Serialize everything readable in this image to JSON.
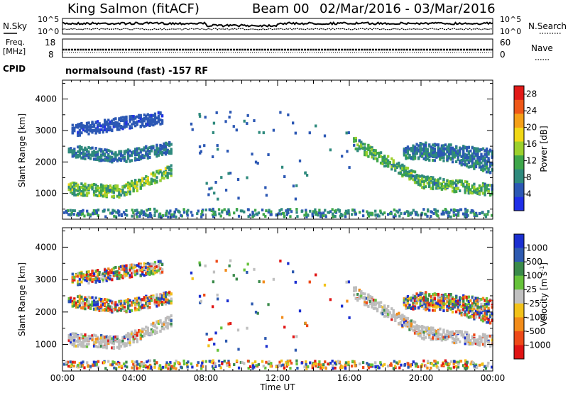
{
  "header": {
    "station": "King Salmon (fitACF)",
    "beam": "Beam 00",
    "date_range": "02/Mar/2016 - 03/Mar/2016"
  },
  "noise_panel": {
    "left_label": "N.Sky",
    "left_ticks": [
      "10^5",
      "10^0"
    ],
    "right_ticks": [
      "10^5",
      "10^0"
    ],
    "right_label": "N.Search"
  },
  "freq_panel": {
    "left_label_line1": "Freq.",
    "left_label_line2": "[MHz]",
    "left_ticks": [
      "18",
      "8"
    ],
    "right_ticks": [
      "60",
      "0"
    ],
    "right_label": "Nave"
  },
  "cpid": {
    "label": "CPID",
    "value": "normalsound (fast) -157 RF"
  },
  "chart_data": [
    {
      "type": "heatmap",
      "title": "",
      "xlabel": "Time UT",
      "ylabel": "Slant Range [km]",
      "x_ticks": [
        "00:00",
        "04:00",
        "08:00",
        "12:00",
        "16:00",
        "20:00",
        "00:00"
      ],
      "y_ticks": [
        "1000",
        "2000",
        "3000",
        "4000"
      ],
      "xlim_hours": [
        0,
        24
      ],
      "ylim": [
        180,
        4600
      ],
      "colorbar": {
        "label": "Power [dB]",
        "ticks": [
          "4",
          "8",
          "12",
          "16",
          "20",
          "24",
          "28"
        ],
        "range": [
          0,
          30
        ],
        "colors": [
          "#1f2fe8",
          "#2c58b4",
          "#2f8a7d",
          "#3ea64a",
          "#9cd02c",
          "#f1d816",
          "#f5a018",
          "#ef5818",
          "#e21a17"
        ]
      },
      "bands": [
        {
          "t": [
            0.3,
            6.0
          ],
          "r_start": 1150,
          "r_peak": 1050,
          "r_end": 1700,
          "level": 14
        },
        {
          "t": [
            0.3,
            6.0
          ],
          "r_start": 2350,
          "r_peak": 2150,
          "r_end": 2450,
          "level": 7
        },
        {
          "t": [
            0.5,
            5.5
          ],
          "r_start": 3000,
          "r_peak": 3200,
          "r_end": 3400,
          "level": 4
        },
        {
          "t": [
            16.2,
            24.0
          ],
          "r_start": 2600,
          "r_peak": 1350,
          "r_end": 1100,
          "level": 13
        },
        {
          "t": [
            19.0,
            24.0
          ],
          "r_start": 2300,
          "r_peak": 2200,
          "r_end": 1800,
          "level": 8
        },
        {
          "t": [
            19.5,
            24.0
          ],
          "r_start": 2450,
          "r_peak": 2350,
          "r_end": 2200,
          "level": 6
        }
      ]
    },
    {
      "type": "heatmap",
      "title": "",
      "xlabel": "Time UT",
      "ylabel": "Slant Range [km]",
      "x_ticks": [
        "00:00",
        "04:00",
        "08:00",
        "12:00",
        "16:00",
        "20:00",
        "00:00"
      ],
      "y_ticks": [
        "1000",
        "2000",
        "3000",
        "4000"
      ],
      "xlim_hours": [
        0,
        24
      ],
      "ylim": [
        180,
        4600
      ],
      "colorbar": {
        "label": "Velocity [m s^-1]",
        "ticks": [
          "1000",
          "500",
          "100",
          "25",
          "-25",
          "-100",
          "-500",
          "-1000"
        ],
        "colors": [
          "#1b2fd0",
          "#2e5ab0",
          "#3a8a4a",
          "#66c23a",
          "#c0c0c0",
          "#f2c21a",
          "#f28c1a",
          "#ee4a18",
          "#e01414"
        ]
      },
      "ground_scatter_color": "#bdbdbd"
    }
  ]
}
